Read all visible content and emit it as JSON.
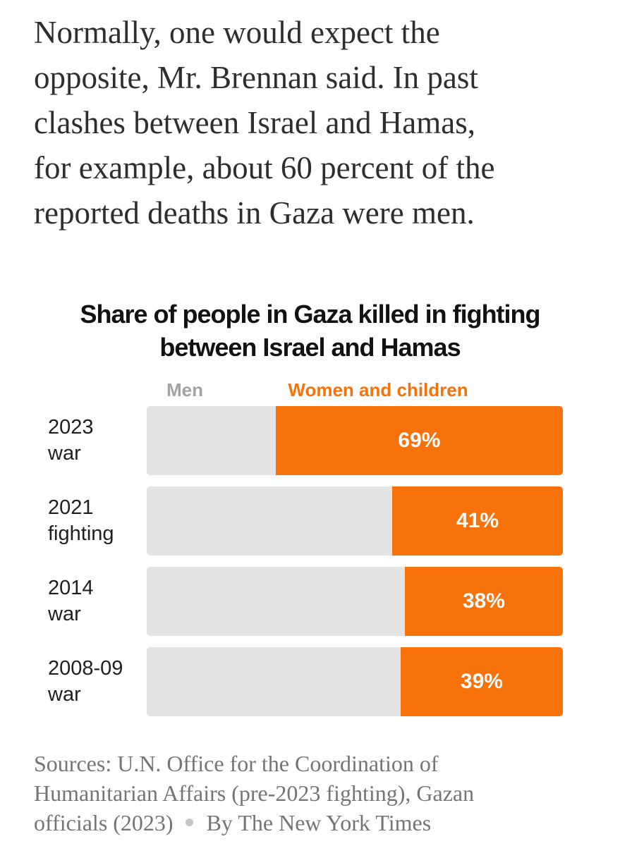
{
  "article": {
    "paragraph_lines": [
      "Normally, one would expect the",
      "opposite, Mr. Brennan said. In past",
      "clashes between Israel and Hamas,",
      "for example, about 60 percent of the",
      "reported deaths in Gaza were men."
    ]
  },
  "chart": {
    "title_line1": "Share of people in Gaza killed in fighting",
    "title_line2": "between Israel and Hamas",
    "legend": {
      "men_label": "Men",
      "women_label": "Women and children"
    },
    "colors": {
      "orange": "#f8720b",
      "bar_gray": "#e4e4e4",
      "legend_gray": "#a3a3a3",
      "value_text": "#ffffff"
    },
    "rows": [
      {
        "label_line1": "2023",
        "label_line2": "war",
        "value": 69,
        "value_label": "69%"
      },
      {
        "label_line1": "2021",
        "label_line2": "fighting",
        "value": 41,
        "value_label": "41%"
      },
      {
        "label_line1": "2014",
        "label_line2": "war",
        "value": 38,
        "value_label": "38%"
      },
      {
        "label_line1": "2008-09",
        "label_line2": "war",
        "value": 39,
        "value_label": "39%"
      }
    ]
  },
  "chart_data": {
    "type": "bar",
    "orientation": "horizontal",
    "stacked": true,
    "title": "Share of people in Gaza killed in fighting between Israel and Hamas",
    "categories": [
      "2023 war",
      "2021 fighting",
      "2014 war",
      "2008-09 war"
    ],
    "series": [
      {
        "name": "Men",
        "values": [
          31,
          59,
          62,
          61
        ],
        "color": "#e4e4e4"
      },
      {
        "name": "Women and children",
        "values": [
          69,
          41,
          38,
          39
        ],
        "color": "#f8720b"
      }
    ],
    "value_labels": [
      "69%",
      "41%",
      "38%",
      "39%"
    ],
    "xlim": [
      0,
      100
    ],
    "unit": "percent",
    "legend_position": "top",
    "grid": false
  },
  "footer": {
    "sources_line1": "Sources: U.N. Office for the Coordination of",
    "sources_line2": "Humanitarian Affairs (pre-2023 fighting), Gazan",
    "sources_line3": "officials (2023)",
    "byline": "By The New York Times"
  }
}
